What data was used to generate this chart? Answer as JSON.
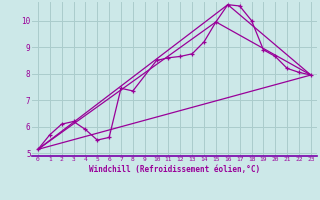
{
  "xlabel": "Windchill (Refroidissement éolien,°C)",
  "bg_color": "#cce8e8",
  "grid_color": "#aacccc",
  "line_color": "#990099",
  "spine_color": "#7700aa",
  "xlim": [
    -0.5,
    23.5
  ],
  "ylim": [
    4.9,
    10.7
  ],
  "yticks": [
    5,
    6,
    7,
    8,
    9,
    10
  ],
  "xticks": [
    0,
    1,
    2,
    3,
    4,
    5,
    6,
    7,
    8,
    9,
    10,
    11,
    12,
    13,
    14,
    15,
    16,
    17,
    18,
    19,
    20,
    21,
    22,
    23
  ],
  "series1_x": [
    0,
    1,
    2,
    3,
    4,
    5,
    6,
    7,
    8,
    10,
    11,
    12,
    13,
    14,
    15,
    16,
    17,
    18,
    19,
    20,
    21,
    22,
    23
  ],
  "series1_y": [
    5.15,
    5.7,
    6.1,
    6.2,
    5.9,
    5.5,
    5.6,
    7.45,
    7.35,
    8.5,
    8.6,
    8.65,
    8.75,
    9.2,
    9.95,
    10.6,
    10.55,
    10.0,
    8.9,
    8.65,
    8.2,
    8.05,
    7.95
  ],
  "series2_x": [
    0,
    23
  ],
  "series2_y": [
    5.15,
    7.95
  ],
  "series3_x": [
    0,
    15,
    23
  ],
  "series3_y": [
    5.15,
    9.95,
    7.95
  ],
  "series4_x": [
    0,
    16,
    23
  ],
  "series4_y": [
    5.15,
    10.6,
    7.95
  ]
}
